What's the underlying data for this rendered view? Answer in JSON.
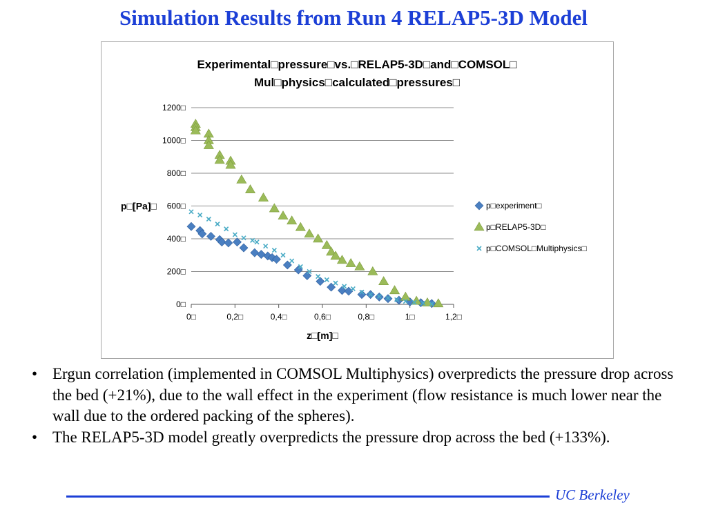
{
  "slide": {
    "title": "Simulation Results from Run 4 RELAP5-3D Model",
    "bullets": [
      "Ergun correlation (implemented in COMSOL Multiphysics) overpredicts the pressure drop across the bed (+21%), due to the wall effect in the experiment (flow resistance is much lower near the wall due to the ordered packing of the spheres).",
      "The RELAP5-3D model greatly overpredicts the pressure drop across the bed (+133%)."
    ],
    "footer": "UC Berkeley"
  },
  "colors": {
    "title_blue": "#1c3fd6",
    "experiment": "#4a7fc1",
    "relap": "#9bbb59",
    "comsol": "#4bacc6",
    "gridline": "#8c8c8c"
  },
  "chart_data": {
    "type": "scatter",
    "title_lines": [
      "Experimental□pressure□vs.□RELAP5-3D□and□COMSOL□",
      "Mul□physics□calculated□pressures□"
    ],
    "xlabel": "z□[m]□",
    "ylabel": "p□[Pa]□",
    "xlim": [
      0,
      1.2
    ],
    "ylim": [
      0,
      1200
    ],
    "x_ticks": [
      "0□",
      "0,2□",
      "0,4□",
      "0,6□",
      "0,8□",
      "1□",
      "1,2□"
    ],
    "y_ticks": [
      "0□",
      "200□",
      "400□",
      "600□",
      "800□",
      "1000□",
      "1200□"
    ],
    "grid": "horizontal",
    "legend_position": "right",
    "series": [
      {
        "name": "p□experiment□",
        "marker": "diamond",
        "x": [
          0.0,
          0.04,
          0.05,
          0.09,
          0.13,
          0.14,
          0.17,
          0.21,
          0.24,
          0.29,
          0.32,
          0.35,
          0.37,
          0.39,
          0.44,
          0.49,
          0.53,
          0.59,
          0.64,
          0.69,
          0.72,
          0.78,
          0.82,
          0.86,
          0.9,
          0.95,
          1.0,
          1.05,
          1.1
        ],
        "y": [
          475,
          450,
          430,
          415,
          395,
          380,
          375,
          380,
          345,
          315,
          305,
          295,
          285,
          275,
          240,
          210,
          175,
          140,
          105,
          85,
          80,
          60,
          60,
          45,
          35,
          25,
          15,
          10,
          5
        ]
      },
      {
        "name": "p□RELAP5-3D□",
        "marker": "triangle",
        "x": [
          0.02,
          0.02,
          0.02,
          0.08,
          0.08,
          0.08,
          0.13,
          0.13,
          0.18,
          0.18,
          0.23,
          0.27,
          0.33,
          0.38,
          0.42,
          0.46,
          0.5,
          0.54,
          0.58,
          0.62,
          0.64,
          0.66,
          0.69,
          0.73,
          0.77,
          0.83,
          0.88,
          0.93,
          0.98,
          1.03,
          1.08,
          1.13
        ],
        "y": [
          1100,
          1080,
          1060,
          1040,
          1000,
          970,
          910,
          880,
          875,
          850,
          760,
          700,
          650,
          585,
          540,
          510,
          470,
          430,
          400,
          360,
          320,
          295,
          270,
          250,
          230,
          200,
          140,
          85,
          45,
          20,
          10,
          5
        ]
      },
      {
        "name": "p□COMSOL□Multiphysics□",
        "marker": "x",
        "x": [
          0.0,
          0.04,
          0.08,
          0.12,
          0.16,
          0.2,
          0.24,
          0.28,
          0.3,
          0.34,
          0.38,
          0.42,
          0.46,
          0.5,
          0.54,
          0.58,
          0.62,
          0.66,
          0.7,
          0.74,
          0.78,
          0.82,
          0.86,
          0.9,
          0.94,
          0.98,
          1.02,
          1.06,
          1.1
        ],
        "y": [
          565,
          545,
          520,
          490,
          460,
          425,
          405,
          390,
          380,
          355,
          330,
          300,
          265,
          230,
          200,
          170,
          150,
          130,
          110,
          95,
          75,
          60,
          48,
          38,
          28,
          18,
          12,
          7,
          3
        ]
      }
    ]
  }
}
